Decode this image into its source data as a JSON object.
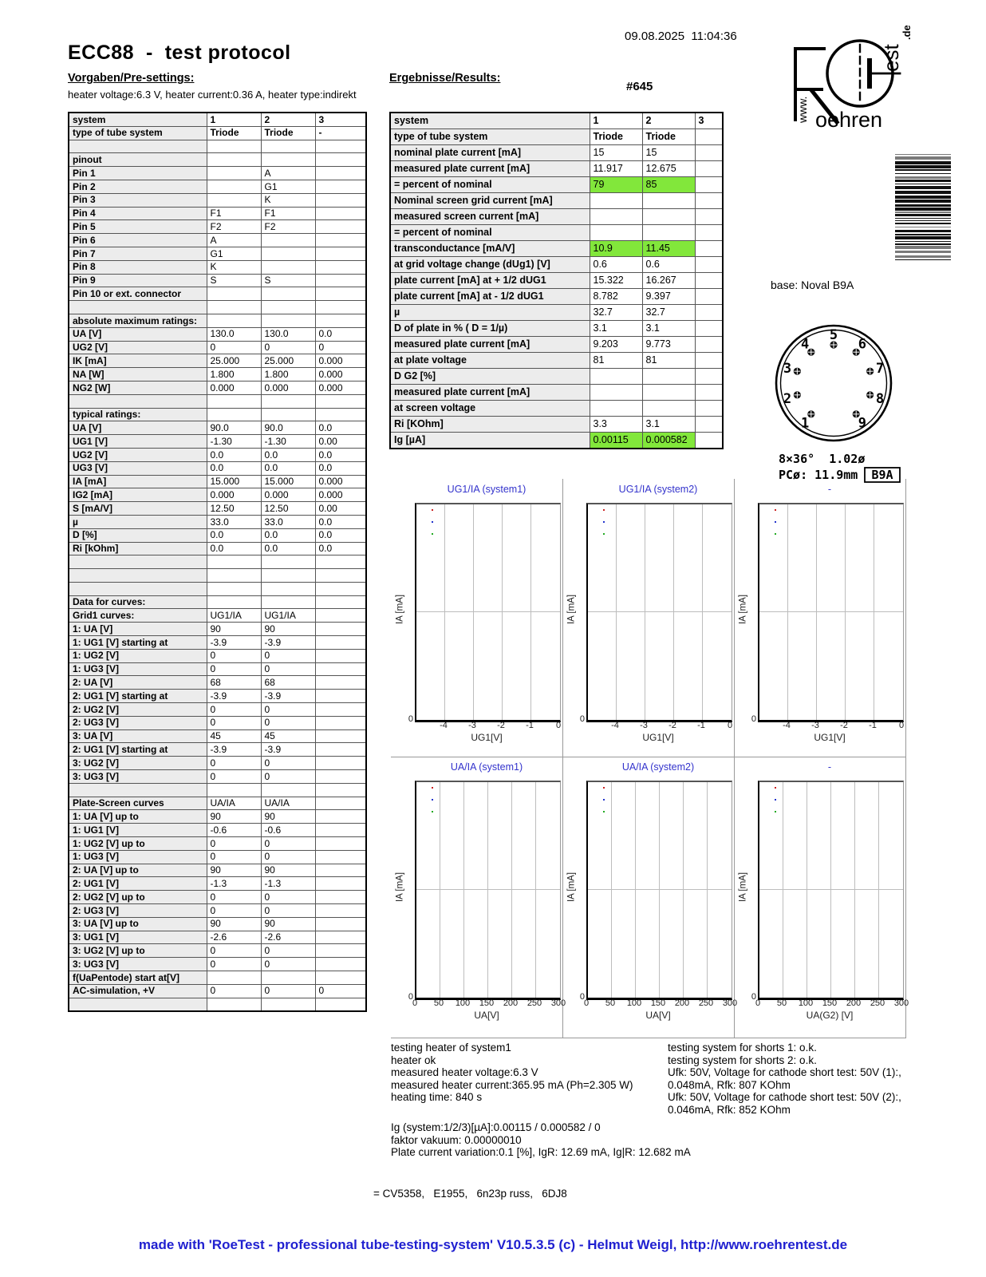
{
  "header": {
    "title": "ECC88  -  test protocol",
    "datetime": "09.08.2025  11:04:36",
    "serial": "#645",
    "presettings_heading": "Vorgaben/Pre-settings:",
    "results_heading": "Ergebnisse/Results:",
    "heater_line": "heater voltage:6.3 V, heater current:0.36 A, heater type:indirekt",
    "logo": {
      "www": "www.",
      "oehren": "oehren",
      "est": "est",
      "de": ".de"
    }
  },
  "pre_table": {
    "rows": [
      {
        "label": "system",
        "v": [
          "1",
          "2",
          "3"
        ],
        "bold_values": true
      },
      {
        "label": "type of tube system",
        "v": [
          "Triode",
          "Triode",
          "-"
        ],
        "bold_values": true
      },
      {
        "label": "",
        "v": [
          "",
          "",
          ""
        ]
      },
      {
        "label": "pinout",
        "v": [
          "",
          "",
          ""
        ]
      },
      {
        "label": "Pin 1",
        "v": [
          "",
          "A",
          ""
        ]
      },
      {
        "label": "Pin 2",
        "v": [
          "",
          "G1",
          ""
        ]
      },
      {
        "label": "Pin 3",
        "v": [
          "",
          "K",
          ""
        ]
      },
      {
        "label": "Pin 4",
        "v": [
          "F1",
          "F1",
          ""
        ]
      },
      {
        "label": "Pin 5",
        "v": [
          "F2",
          "F2",
          ""
        ]
      },
      {
        "label": "Pin 6",
        "v": [
          "A",
          "",
          ""
        ]
      },
      {
        "label": "Pin 7",
        "v": [
          "G1",
          "",
          ""
        ]
      },
      {
        "label": "Pin 8",
        "v": [
          "K",
          "",
          ""
        ]
      },
      {
        "label": "Pin 9",
        "v": [
          "S",
          "S",
          ""
        ]
      },
      {
        "label": "Pin 10 or ext. connector",
        "v": [
          "",
          "",
          ""
        ]
      },
      {
        "label": "",
        "v": [
          "",
          "",
          ""
        ]
      },
      {
        "label": "absolute maximum ratings:",
        "v": [
          "",
          "",
          ""
        ]
      },
      {
        "label": "UA [V]",
        "v": [
          "130.0",
          "130.0",
          "0.0"
        ]
      },
      {
        "label": "UG2 [V]",
        "v": [
          "0",
          "0",
          "0"
        ]
      },
      {
        "label": "IK [mA]",
        "v": [
          "25.000",
          "25.000",
          "0.000"
        ]
      },
      {
        "label": "NA [W]",
        "v": [
          "1.800",
          "1.800",
          "0.000"
        ]
      },
      {
        "label": "NG2 [W]",
        "v": [
          "0.000",
          "0.000",
          "0.000"
        ]
      },
      {
        "label": "",
        "v": [
          "",
          "",
          ""
        ]
      },
      {
        "label": "typical ratings:",
        "v": [
          "",
          "",
          ""
        ]
      },
      {
        "label": "UA [V]",
        "v": [
          "90.0",
          "90.0",
          "0.0"
        ]
      },
      {
        "label": "UG1 [V]",
        "v": [
          "-1.30",
          "-1.30",
          "0.00"
        ]
      },
      {
        "label": "UG2 [V]",
        "v": [
          "0.0",
          "0.0",
          "0.0"
        ]
      },
      {
        "label": "UG3 [V]",
        "v": [
          "0.0",
          "0.0",
          "0.0"
        ]
      },
      {
        "label": "IA [mA]",
        "v": [
          "15.000",
          "15.000",
          "0.000"
        ]
      },
      {
        "label": "IG2 [mA]",
        "v": [
          "0.000",
          "0.000",
          "0.000"
        ]
      },
      {
        "label": "S [mA/V]",
        "v": [
          "12.50",
          "12.50",
          "0.00"
        ]
      },
      {
        "label": "µ",
        "v": [
          "33.0",
          "33.0",
          "0.0"
        ]
      },
      {
        "label": "D [%]",
        "v": [
          "0.0",
          "0.0",
          "0.0"
        ]
      },
      {
        "label": "Ri [kOhm]",
        "v": [
          "0.0",
          "0.0",
          "0.0"
        ]
      },
      {
        "label": "",
        "v": [
          "",
          "",
          ""
        ]
      },
      {
        "label": "",
        "v": [
          "",
          "",
          ""
        ]
      },
      {
        "label": "",
        "v": [
          "",
          "",
          ""
        ]
      },
      {
        "label": "Data for curves:",
        "v": [
          "",
          "",
          ""
        ]
      },
      {
        "label": "Grid1 curves:",
        "v": [
          "UG1/IA",
          "UG1/IA",
          ""
        ]
      },
      {
        "label": "1: UA [V]",
        "v": [
          "90",
          "90",
          ""
        ]
      },
      {
        "label": "1: UG1 [V] starting at",
        "v": [
          "-3.9",
          "-3.9",
          ""
        ]
      },
      {
        "label": "1: UG2 [V]",
        "v": [
          "0",
          "0",
          ""
        ]
      },
      {
        "label": "1: UG3 [V]",
        "v": [
          "0",
          "0",
          ""
        ]
      },
      {
        "label": "2: UA [V]",
        "v": [
          "68",
          "68",
          ""
        ]
      },
      {
        "label": "2: UG1 [V] starting at",
        "v": [
          "-3.9",
          "-3.9",
          ""
        ]
      },
      {
        "label": "2: UG2 [V]",
        "v": [
          "0",
          "0",
          ""
        ]
      },
      {
        "label": "2: UG3 [V]",
        "v": [
          "0",
          "0",
          ""
        ]
      },
      {
        "label": "3: UA [V]",
        "v": [
          "45",
          "45",
          ""
        ]
      },
      {
        "label": "2: UG1 [V] starting at",
        "v": [
          "-3.9",
          "-3.9",
          ""
        ]
      },
      {
        "label": "3: UG2 [V]",
        "v": [
          "0",
          "0",
          ""
        ]
      },
      {
        "label": "3: UG3 [V]",
        "v": [
          "0",
          "0",
          ""
        ]
      },
      {
        "label": "",
        "v": [
          "",
          "",
          ""
        ]
      },
      {
        "label": "Plate-Screen curves",
        "v": [
          "UA/IA",
          "UA/IA",
          ""
        ]
      },
      {
        "label": "1: UA [V] up to",
        "v": [
          "90",
          "90",
          ""
        ]
      },
      {
        "label": "1: UG1 [V]",
        "v": [
          "-0.6",
          "-0.6",
          ""
        ]
      },
      {
        "label": "1: UG2 [V] up to",
        "v": [
          "0",
          "0",
          ""
        ]
      },
      {
        "label": "1: UG3 [V]",
        "v": [
          "0",
          "0",
          ""
        ]
      },
      {
        "label": "2: UA [V] up to",
        "v": [
          "90",
          "90",
          ""
        ]
      },
      {
        "label": "2: UG1 [V]",
        "v": [
          "-1.3",
          "-1.3",
          ""
        ]
      },
      {
        "label": "2: UG2 [V] up to",
        "v": [
          "0",
          "0",
          ""
        ]
      },
      {
        "label": "2: UG3 [V]",
        "v": [
          "0",
          "0",
          ""
        ]
      },
      {
        "label": "3: UA [V] up to",
        "v": [
          "90",
          "90",
          ""
        ]
      },
      {
        "label": "3: UG1 [V]",
        "v": [
          "-2.6",
          "-2.6",
          ""
        ]
      },
      {
        "label": "3: UG2 [V] up to",
        "v": [
          "0",
          "0",
          ""
        ]
      },
      {
        "label": "3: UG3 [V]",
        "v": [
          "0",
          "0",
          ""
        ]
      },
      {
        "label": "f(UaPentode) start at[V]",
        "v": [
          "",
          "",
          ""
        ]
      },
      {
        "label": "AC-simulation, +V",
        "v": [
          "0",
          "0",
          "0"
        ]
      },
      {
        "label": "",
        "v": [
          "",
          "",
          ""
        ]
      }
    ]
  },
  "results_table": {
    "rows": [
      {
        "label": "system",
        "v": [
          "1",
          "2",
          "3"
        ],
        "bold_values": true
      },
      {
        "label": "type of tube system",
        "v": [
          "Triode",
          "Triode",
          ""
        ],
        "bold_values": true
      },
      {
        "label": "nominal plate current [mA]",
        "v": [
          "15",
          "15",
          ""
        ]
      },
      {
        "label": "measured plate current [mA]",
        "v": [
          "11.917",
          "12.675",
          ""
        ]
      },
      {
        "label": "= percent of nominal",
        "v": [
          "79",
          "85",
          ""
        ],
        "green": [
          0,
          1
        ]
      },
      {
        "label": "Nominal screen grid current [mA]",
        "v": [
          "",
          "",
          ""
        ]
      },
      {
        "label": "measured screen current [mA]",
        "v": [
          "",
          "",
          ""
        ]
      },
      {
        "label": "= percent of nominal",
        "v": [
          "",
          "",
          ""
        ]
      },
      {
        "label": "transconductance [mA/V]",
        "v": [
          "10.9",
          "11.45",
          ""
        ],
        "green": [
          0,
          1
        ]
      },
      {
        "label": "at grid voltage change (dUg1) [V]",
        "v": [
          "0.6",
          "0.6",
          ""
        ]
      },
      {
        "label": "plate current [mA] at + 1/2 dUG1",
        "v": [
          "15.322",
          "16.267",
          ""
        ]
      },
      {
        "label": "plate current [mA] at - 1/2 dUG1",
        "v": [
          "8.782",
          "9.397",
          ""
        ]
      },
      {
        "label": "µ",
        "v": [
          "32.7",
          "32.7",
          ""
        ]
      },
      {
        "label": "D of plate in % ( D = 1/µ)",
        "v": [
          "3.1",
          "3.1",
          ""
        ]
      },
      {
        "label": "measured plate current [mA]",
        "v": [
          "9.203",
          "9.773",
          ""
        ]
      },
      {
        "label": "at plate voltage",
        "v": [
          "81",
          "81",
          ""
        ]
      },
      {
        "label": "D G2 [%]",
        "v": [
          "",
          "",
          ""
        ]
      },
      {
        "label": "measured plate current [mA]",
        "v": [
          "",
          "",
          ""
        ]
      },
      {
        "label": "at screen voltage",
        "v": [
          "",
          "",
          ""
        ]
      },
      {
        "label": "Ri [KOhm]",
        "v": [
          "3.3",
          "3.1",
          ""
        ]
      },
      {
        "label": "Ig [µA]",
        "v": [
          "0.00115",
          "0.000582",
          ""
        ],
        "green": [
          0,
          1
        ]
      }
    ]
  },
  "base_info": {
    "base_label": "base: Noval B9A",
    "pin_spec_line1": "8×36°  1.02ø",
    "pin_spec_line2": "PCø: 11.9mm",
    "base_code": "B9A",
    "pins": [
      {
        "n": "1",
        "angle": 234
      },
      {
        "n": "2",
        "angle": 198
      },
      {
        "n": "3",
        "angle": 162
      },
      {
        "n": "4",
        "angle": 126
      },
      {
        "n": "5",
        "angle": 90
      },
      {
        "n": "6",
        "angle": 54
      },
      {
        "n": "7",
        "angle": 18
      },
      {
        "n": "8",
        "angle": 342
      },
      {
        "n": "9",
        "angle": 306
      }
    ]
  },
  "chart_data": [
    {
      "type": "scatter",
      "title": "UG1/IA (system1)",
      "xlabel": "UG1[V]",
      "ylabel": "IA [mA]",
      "xlim": [
        -5,
        0
      ],
      "x_ticks": [
        -4,
        -3,
        -2,
        -1,
        0
      ],
      "y_ticks": [
        0
      ],
      "y_zero_label": "0",
      "grid": true,
      "series": [],
      "legend_marker_colors": [
        "#cc2222",
        "#2233cc",
        "#22aa22"
      ]
    },
    {
      "type": "scatter",
      "title": "UG1/IA (system2)",
      "xlabel": "UG1[V]",
      "ylabel": "IA [mA]",
      "xlim": [
        -5,
        0
      ],
      "x_ticks": [
        -4,
        -3,
        -2,
        -1,
        0
      ],
      "y_ticks": [
        0
      ],
      "y_zero_label": "0",
      "grid": true,
      "series": [],
      "legend_marker_colors": [
        "#cc2222",
        "#2233cc",
        "#22aa22"
      ]
    },
    {
      "type": "scatter",
      "title": "-",
      "xlabel": "UG1[V]",
      "ylabel": "IA [mA]",
      "xlim": [
        -5,
        0
      ],
      "x_ticks": [
        -4,
        -3,
        -2,
        -1,
        0
      ],
      "y_ticks": [
        0
      ],
      "y_zero_label": "0",
      "grid": true,
      "series": [],
      "legend_marker_colors": [
        "#cc2222",
        "#2233cc",
        "#22aa22"
      ]
    },
    {
      "type": "scatter",
      "title": "UA/IA (system1)",
      "xlabel": "UA[V]",
      "ylabel": "IA [mA]",
      "xlim": [
        0,
        300
      ],
      "x_ticks": [
        0,
        50,
        100,
        150,
        200,
        250,
        300
      ],
      "y_ticks": [
        0
      ],
      "y_zero_label": "0",
      "grid": true,
      "series": [],
      "legend_marker_colors": [
        "#cc2222",
        "#2233cc",
        "#22aa22"
      ]
    },
    {
      "type": "scatter",
      "title": "UA/IA (system2)",
      "xlabel": "UA[V]",
      "ylabel": "IA [mA]",
      "xlim": [
        0,
        300
      ],
      "x_ticks": [
        0,
        50,
        100,
        150,
        200,
        250,
        300
      ],
      "y_ticks": [
        0
      ],
      "y_zero_label": "0",
      "grid": true,
      "series": [],
      "legend_marker_colors": [
        "#cc2222",
        "#2233cc",
        "#22aa22"
      ]
    },
    {
      "type": "scatter",
      "title": "-",
      "xlabel": "UA(G2) [V]",
      "ylabel": "IA [mA]",
      "xlim": [
        0,
        300
      ],
      "x_ticks": [
        0,
        50,
        100,
        150,
        200,
        250,
        300
      ],
      "y_ticks": [
        0
      ],
      "y_zero_label": "0",
      "grid": true,
      "series": [],
      "legend_marker_colors": [
        "#cc2222",
        "#2233cc",
        "#22aa22"
      ]
    }
  ],
  "notes": {
    "left_lines": [
      "testing heater of system1",
      "heater ok",
      "measured heater voltage:6.3 V",
      "measured heater current:365.95 mA (Ph=2.305 W)",
      "heating time: 840 s"
    ],
    "right_lines": [
      "testing system for shorts 1: o.k.",
      "testing system for shorts 2: o.k.",
      "Ufk: 50V, Voltage for cathode short test: 50V (1):,",
      "0.048mA, Rfk: 807 KOhm",
      "Ufk: 50V, Voltage for cathode short test: 50V (2):,",
      "0.046mA, Rfk: 852 KOhm"
    ],
    "ig_lines": [
      "Ig (system:1/2/3)[µA]:0.00115 / 0.000582 / 0",
      "faktor vakuum: 0.00000010",
      "Plate current variation:0.1 [%], IgR: 12.69 mA, Ig|R: 12.682 mA"
    ],
    "equivalents": "= CV5358,   E1955,   6n23p russ,   6DJ8"
  },
  "footer": {
    "credit": "made with 'RoeTest - professional tube-testing-system' V10.5.3.5 (c) - Helmut Weigl, http://www.roehrentest.de"
  },
  "colors": {
    "highlight_green": "#82e73b",
    "chart_title_blue": "#3333cc",
    "footer_blue": "#2020d0",
    "label_cell_bg": "#ececec"
  }
}
